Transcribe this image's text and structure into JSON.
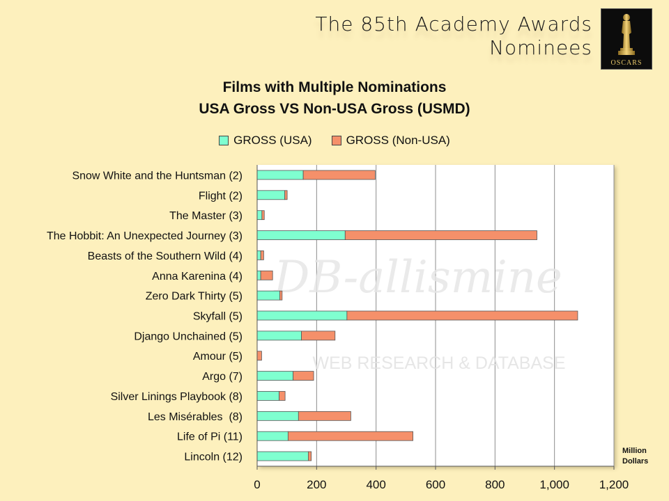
{
  "header": {
    "title_line1": "The 85th Academy Awards",
    "title_line2": "Nominees",
    "logo_text": "OSCARS",
    "logo_icon": "oscar-statuette-icon"
  },
  "watermark": {
    "line1": "DB-allismine",
    "line2": "WEB RESEARCH & DATABASE"
  },
  "chart_data": {
    "type": "bar",
    "orientation": "horizontal",
    "stacked": true,
    "title": "Films with Multiple Nominations",
    "subtitle": "USA Gross VS Non-USA Gross (USMD)",
    "unit_label_line1": "Million",
    "unit_label_line2": "Dollars",
    "categories": [
      "Snow White and the Huntsman (2)",
      "Flight (2)",
      "The Master (3)",
      "The Hobbit: An Unexpected Journey (3)",
      "Beasts of the Southern Wild (4)",
      "Anna Karenina (4)",
      "Zero Dark Thirty (5)",
      "Skyfall (5)",
      "Django Unchained (5)",
      "Amour (5)",
      "Argo (7)",
      "Silver Linings Playbook (8)",
      "Les Misérables  (8)",
      "Life of Pi (11)",
      "Lincoln (12)"
    ],
    "series": [
      {
        "name": "GROSS (USA)",
        "color": "#7fffd0",
        "values": [
          155,
          93,
          16,
          296,
          12,
          12,
          76,
          302,
          149,
          0,
          121,
          74,
          139,
          104,
          172
        ]
      },
      {
        "name": "GROSS (Non-USA)",
        "color": "#f5906a",
        "values": [
          242,
          8,
          8,
          645,
          10,
          40,
          8,
          776,
          113,
          15,
          69,
          20,
          176,
          420,
          10
        ]
      }
    ],
    "xlim": [
      0,
      1200
    ],
    "xticks": [
      0,
      200,
      400,
      600,
      800,
      "1,000",
      "1,200"
    ],
    "xtick_values": [
      0,
      200,
      400,
      600,
      800,
      1000,
      1200
    ],
    "grid": true,
    "legend_position": "top"
  }
}
